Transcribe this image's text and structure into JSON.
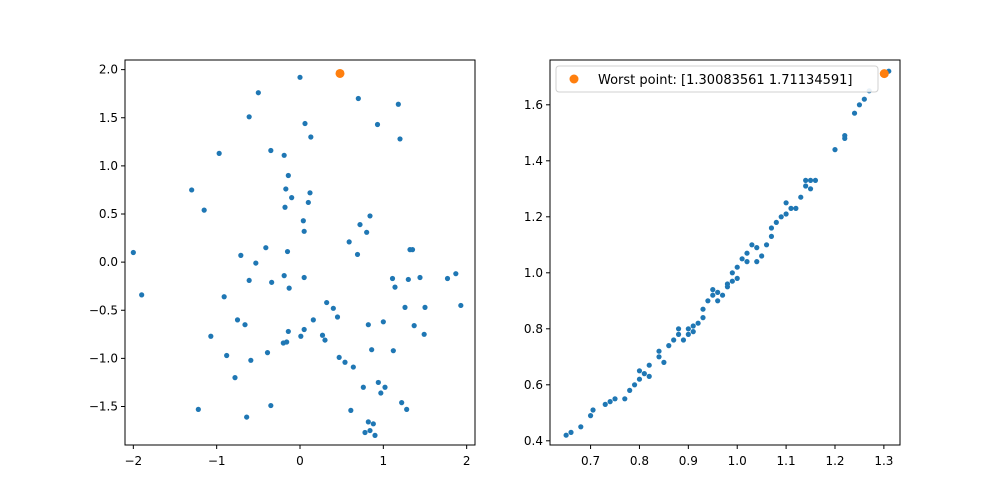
{
  "colors": {
    "points": "#1f77b4",
    "worst": "#ff7f0e"
  },
  "chart_data": [
    {
      "type": "scatter",
      "xlim": [
        -2.1,
        2.1
      ],
      "ylim": [
        -1.9,
        2.1
      ],
      "xticks": [
        -2,
        -1,
        0,
        1,
        2
      ],
      "yticks": [
        -1.5,
        -1.0,
        -0.5,
        0.0,
        0.5,
        1.0,
        1.5,
        2.0
      ],
      "xtick_labels": [
        "−2",
        "−1",
        "0",
        "1",
        "2"
      ],
      "ytick_labels": [
        "−1.5",
        "−1.0",
        "−0.5",
        "0.0",
        "0.5",
        "1.0",
        "1.5",
        "2.0"
      ],
      "grid": false,
      "series": [
        {
          "points": [
            [
              -2.0,
              0.1
            ],
            [
              -1.9,
              -0.34
            ],
            [
              -1.3,
              0.75
            ],
            [
              -1.22,
              -1.53
            ],
            [
              -1.15,
              0.54
            ],
            [
              -1.07,
              -0.77
            ],
            [
              -0.97,
              1.13
            ],
            [
              -0.91,
              -0.36
            ],
            [
              -0.88,
              -0.97
            ],
            [
              -0.78,
              -1.2
            ],
            [
              -0.75,
              -0.6
            ],
            [
              -0.71,
              0.07
            ],
            [
              -0.66,
              -0.65
            ],
            [
              -0.64,
              -1.61
            ],
            [
              -0.61,
              1.51
            ],
            [
              -0.61,
              -0.19
            ],
            [
              -0.59,
              -1.02
            ],
            [
              -0.53,
              -0.01
            ],
            [
              -0.5,
              1.76
            ],
            [
              -0.41,
              0.15
            ],
            [
              -0.39,
              -0.94
            ],
            [
              -0.35,
              -1.49
            ],
            [
              -0.35,
              1.16
            ],
            [
              -0.34,
              -0.21
            ],
            [
              -0.2,
              -0.84
            ],
            [
              -0.19,
              -0.14
            ],
            [
              -0.19,
              1.11
            ],
            [
              -0.18,
              0.57
            ],
            [
              -0.17,
              0.76
            ],
            [
              -0.16,
              -0.83
            ],
            [
              -0.15,
              0.11
            ],
            [
              -0.14,
              -0.72
            ],
            [
              -0.14,
              0.9
            ],
            [
              -0.13,
              -0.27
            ],
            [
              -0.1,
              0.67
            ],
            [
              0.0,
              1.92
            ],
            [
              0.01,
              -0.77
            ],
            [
              0.04,
              0.43
            ],
            [
              0.05,
              0.32
            ],
            [
              0.05,
              -0.16
            ],
            [
              0.05,
              -0.7
            ],
            [
              0.06,
              1.44
            ],
            [
              0.1,
              0.62
            ],
            [
              0.12,
              0.72
            ],
            [
              0.13,
              1.3
            ],
            [
              0.16,
              -0.6
            ],
            [
              0.27,
              -0.76
            ],
            [
              0.3,
              -0.81
            ],
            [
              0.32,
              -0.42
            ],
            [
              0.4,
              -0.48
            ],
            [
              0.45,
              -0.57
            ],
            [
              0.47,
              -0.99
            ],
            [
              0.54,
              -1.04
            ],
            [
              0.59,
              0.21
            ],
            [
              0.61,
              -1.54
            ],
            [
              0.64,
              -1.09
            ],
            [
              0.69,
              0.08
            ],
            [
              0.7,
              1.7
            ],
            [
              0.72,
              0.39
            ],
            [
              0.76,
              -1.3
            ],
            [
              0.78,
              -1.77
            ],
            [
              0.8,
              0.31
            ],
            [
              0.82,
              -0.65
            ],
            [
              0.82,
              -1.66
            ],
            [
              0.84,
              0.48
            ],
            [
              0.84,
              -1.75
            ],
            [
              0.86,
              -0.91
            ],
            [
              0.88,
              -1.68
            ],
            [
              0.9,
              -1.8
            ],
            [
              0.93,
              1.43
            ],
            [
              0.94,
              -1.25
            ],
            [
              0.97,
              -1.36
            ],
            [
              1.0,
              -0.62
            ],
            [
              1.02,
              -1.3
            ],
            [
              1.11,
              -0.17
            ],
            [
              1.12,
              -0.92
            ],
            [
              1.14,
              -0.26
            ],
            [
              1.18,
              1.64
            ],
            [
              1.2,
              1.28
            ],
            [
              1.22,
              -1.46
            ],
            [
              1.26,
              -0.47
            ],
            [
              1.28,
              -1.53
            ],
            [
              1.3,
              -0.18
            ],
            [
              1.32,
              0.13
            ],
            [
              1.35,
              0.13
            ],
            [
              1.37,
              -0.66
            ],
            [
              1.44,
              -0.16
            ],
            [
              1.49,
              -0.75
            ],
            [
              1.5,
              -0.47
            ],
            [
              1.77,
              -0.17
            ],
            [
              1.87,
              -0.12
            ],
            [
              1.93,
              -0.45
            ]
          ]
        },
        {
          "points": [
            [
              0.48,
              1.96
            ]
          ]
        }
      ]
    },
    {
      "type": "scatter",
      "xlim": [
        0.617,
        1.333
      ],
      "ylim": [
        0.385,
        1.76
      ],
      "xticks": [
        0.7,
        0.8,
        0.9,
        1.0,
        1.1,
        1.2,
        1.3
      ],
      "yticks": [
        0.4,
        0.6,
        0.8,
        1.0,
        1.2,
        1.4,
        1.6
      ],
      "xtick_labels": [
        "0.7",
        "0.8",
        "0.9",
        "1.0",
        "1.1",
        "1.2",
        "1.3"
      ],
      "ytick_labels": [
        "0.4",
        "0.6",
        "0.8",
        "1.0",
        "1.2",
        "1.4",
        "1.6"
      ],
      "grid": false,
      "legend": {
        "placement": "top",
        "label": "Worst point: [1.30083561 1.71134591]"
      },
      "series": [
        {
          "points": [
            [
              0.65,
              0.42
            ],
            [
              0.66,
              0.43
            ],
            [
              0.68,
              0.45
            ],
            [
              0.7,
              0.49
            ],
            [
              0.705,
              0.51
            ],
            [
              0.73,
              0.53
            ],
            [
              0.74,
              0.54
            ],
            [
              0.75,
              0.55
            ],
            [
              0.77,
              0.55
            ],
            [
              0.78,
              0.58
            ],
            [
              0.79,
              0.6
            ],
            [
              0.8,
              0.62
            ],
            [
              0.8,
              0.65
            ],
            [
              0.81,
              0.64
            ],
            [
              0.82,
              0.63
            ],
            [
              0.82,
              0.67
            ],
            [
              0.84,
              0.7
            ],
            [
              0.84,
              0.72
            ],
            [
              0.85,
              0.68
            ],
            [
              0.86,
              0.74
            ],
            [
              0.87,
              0.76
            ],
            [
              0.88,
              0.78
            ],
            [
              0.88,
              0.8
            ],
            [
              0.89,
              0.76
            ],
            [
              0.9,
              0.8
            ],
            [
              0.9,
              0.78
            ],
            [
              0.91,
              0.79
            ],
            [
              0.91,
              0.81
            ],
            [
              0.92,
              0.82
            ],
            [
              0.93,
              0.84
            ],
            [
              0.93,
              0.87
            ],
            [
              0.94,
              0.9
            ],
            [
              0.95,
              0.92
            ],
            [
              0.95,
              0.94
            ],
            [
              0.96,
              0.9
            ],
            [
              0.96,
              0.93
            ],
            [
              0.97,
              0.92
            ],
            [
              0.98,
              0.95
            ],
            [
              0.98,
              0.96
            ],
            [
              0.99,
              0.97
            ],
            [
              0.99,
              1.0
            ],
            [
              1.0,
              1.02
            ],
            [
              1.0,
              0.98
            ],
            [
              1.01,
              1.05
            ],
            [
              1.02,
              1.04
            ],
            [
              1.02,
              1.07
            ],
            [
              1.03,
              1.1
            ],
            [
              1.04,
              1.04
            ],
            [
              1.04,
              1.09
            ],
            [
              1.05,
              1.06
            ],
            [
              1.06,
              1.1
            ],
            [
              1.07,
              1.13
            ],
            [
              1.07,
              1.16
            ],
            [
              1.08,
              1.18
            ],
            [
              1.09,
              1.2
            ],
            [
              1.1,
              1.21
            ],
            [
              1.1,
              1.25
            ],
            [
              1.11,
              1.23
            ],
            [
              1.12,
              1.23
            ],
            [
              1.13,
              1.27
            ],
            [
              1.14,
              1.31
            ],
            [
              1.14,
              1.33
            ],
            [
              1.15,
              1.3
            ],
            [
              1.15,
              1.33
            ],
            [
              1.16,
              1.33
            ],
            [
              1.2,
              1.44
            ],
            [
              1.22,
              1.49
            ],
            [
              1.22,
              1.48
            ],
            [
              1.24,
              1.57
            ],
            [
              1.25,
              1.6
            ],
            [
              1.26,
              1.62
            ],
            [
              1.27,
              1.65
            ],
            [
              1.3,
              1.71
            ],
            [
              1.31,
              1.72
            ]
          ]
        },
        {
          "name": "Worst point: [1.30083561 1.71134591]",
          "points": [
            [
              1.30083561,
              1.71134591
            ]
          ]
        }
      ]
    }
  ]
}
